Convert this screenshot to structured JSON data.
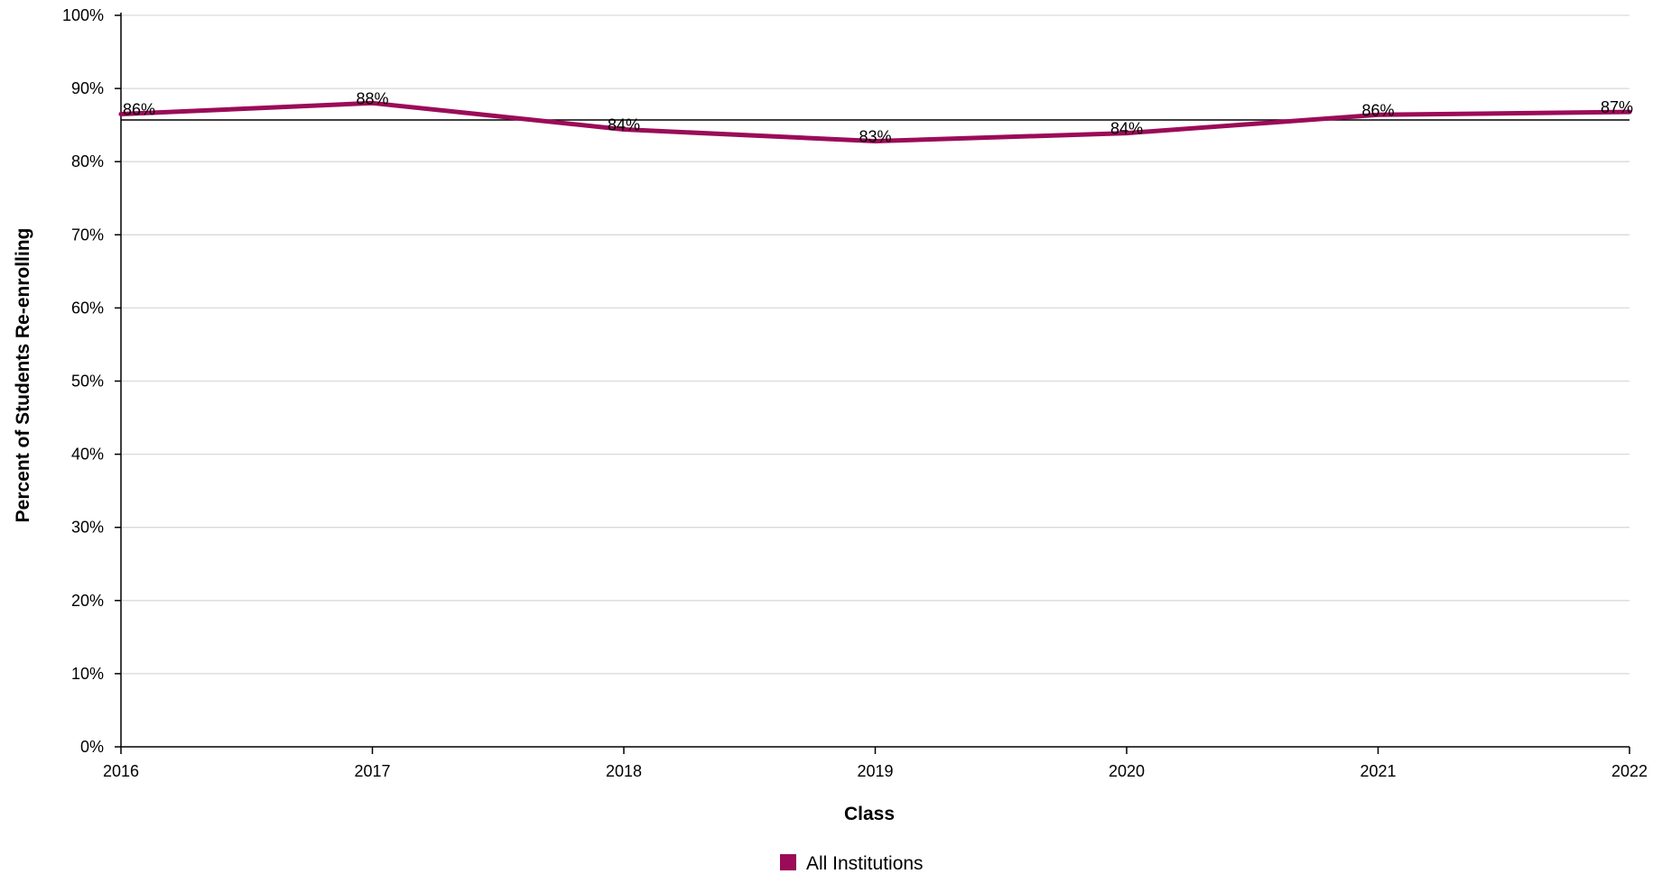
{
  "chart_data": {
    "type": "line",
    "title": "",
    "xlabel": "Class",
    "ylabel": "Percent of Students Re-enrolling",
    "x": [
      2016,
      2017,
      2018,
      2019,
      2020,
      2021,
      2022
    ],
    "x_tick_labels": [
      "2016",
      "2017",
      "2018",
      "2019",
      "2020",
      "2021",
      "2022"
    ],
    "y_ticks": [
      0,
      10,
      20,
      30,
      40,
      50,
      60,
      70,
      80,
      90,
      100
    ],
    "y_tick_labels": [
      "0%",
      "10%",
      "20%",
      "30%",
      "40%",
      "50%",
      "60%",
      "70%",
      "80%",
      "90%",
      "100%"
    ],
    "ylim": [
      0,
      100
    ],
    "xlim": [
      2016,
      2022
    ],
    "grid": true,
    "series": [
      {
        "name": "All Institutions",
        "color": "#9b0b58",
        "values": [
          86.5,
          88.0,
          84.4,
          82.8,
          83.9,
          86.4,
          86.8
        ],
        "data_labels": [
          "86%",
          "88%",
          "84%",
          "83%",
          "84%",
          "86%",
          "87%"
        ]
      }
    ],
    "reference_line": {
      "value": 85.7,
      "color": "#000000"
    },
    "legend": {
      "position": "bottom-center"
    }
  }
}
